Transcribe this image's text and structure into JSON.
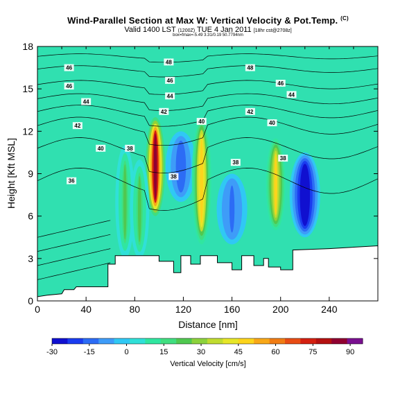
{
  "title": {
    "main": "Wind-Parallel Section at Max W: Vertical Velocity & Pot.Temp.",
    "copyright": "(C)"
  },
  "subtitle": {
    "valid": "Valid 1400 LST",
    "utc": "(1200Z)",
    "date": "TUE 4 Jan 2011",
    "forecast": "[18hr cst@2708z]",
    "small": "box=fmax=-5.49 3.31/0.19 50.7794nm"
  },
  "colorbar": {
    "label": "Vertical Velocity [cm/s]",
    "tick_labels": [
      "-30",
      "-15",
      "0",
      "15",
      "30",
      "45",
      "60",
      "75",
      "90"
    ],
    "colors": [
      "#1010d0",
      "#1a3cf0",
      "#2c6cf5",
      "#3e9cf8",
      "#30c8f4",
      "#30e0d8",
      "#30e6a0",
      "#40de80",
      "#50c850",
      "#8cd23c",
      "#c0dc30",
      "#e6e628",
      "#fcd41c",
      "#f8a818",
      "#f07c14",
      "#e84c14",
      "#d42010",
      "#b41010",
      "#900030",
      "#7a1090"
    ]
  },
  "chart_data": {
    "type": "contour",
    "title": "Wind-Parallel Section at Max W: Vertical Velocity & Pot.Temp.",
    "xlabel": "Distance [nm]",
    "ylabel": "Height [Kft MSL]",
    "xlim": [
      0,
      280
    ],
    "ylim": [
      0,
      18
    ],
    "x_ticks": [
      0,
      40,
      80,
      120,
      160,
      200,
      240
    ],
    "y_ticks": [
      0,
      3,
      6,
      9,
      12,
      15,
      18
    ],
    "fill_variable": "Vertical Velocity [cm/s]",
    "fill_range": [
      -30,
      95
    ],
    "fill_levels": [
      -30,
      -15,
      0,
      15,
      30,
      45,
      60,
      75,
      90
    ],
    "contour_variable": "Potential Temperature",
    "contour_labels": [
      {
        "x": 26,
        "y": 16.5,
        "value": "46"
      },
      {
        "x": 108,
        "y": 16.9,
        "value": "48"
      },
      {
        "x": 175,
        "y": 16.5,
        "value": "48"
      },
      {
        "x": 109,
        "y": 15.6,
        "value": "46"
      },
      {
        "x": 200,
        "y": 15.4,
        "value": "46"
      },
      {
        "x": 26,
        "y": 15.2,
        "value": "46"
      },
      {
        "x": 109,
        "y": 14.5,
        "value": "44"
      },
      {
        "x": 209,
        "y": 14.6,
        "value": "44"
      },
      {
        "x": 40,
        "y": 14.1,
        "value": "44"
      },
      {
        "x": 104,
        "y": 13.4,
        "value": "42"
      },
      {
        "x": 175,
        "y": 13.4,
        "value": "42"
      },
      {
        "x": 135,
        "y": 12.7,
        "value": "40"
      },
      {
        "x": 193,
        "y": 12.6,
        "value": "40"
      },
      {
        "x": 33,
        "y": 12.4,
        "value": "42"
      },
      {
        "x": 52,
        "y": 10.8,
        "value": "40"
      },
      {
        "x": 76,
        "y": 10.8,
        "value": "38"
      },
      {
        "x": 163,
        "y": 9.8,
        "value": "38"
      },
      {
        "x": 202,
        "y": 10.1,
        "value": "38"
      },
      {
        "x": 112,
        "y": 8.8,
        "value": "38"
      },
      {
        "x": 28,
        "y": 8.5,
        "value": "36"
      }
    ],
    "updrafts": [
      {
        "x_center": 97,
        "max_w_cm_s": 85,
        "height_range_kft": [
          6,
          13
        ]
      },
      {
        "x_center": 135,
        "max_w_cm_s": 50,
        "height_range_kft": [
          4,
          13
        ]
      },
      {
        "x_center": 196,
        "max_w_cm_s": 45,
        "height_range_kft": [
          5,
          11.5
        ]
      },
      {
        "x_center": 72,
        "max_w_cm_s": 20,
        "height_range_kft": [
          3,
          11
        ]
      },
      {
        "x_center": 84,
        "max_w_cm_s": 20,
        "height_range_kft": [
          3,
          10
        ]
      }
    ],
    "downdrafts": [
      {
        "x_center": 220,
        "min_w_cm_s": -30,
        "height_range_kft": [
          4.5,
          10.5
        ]
      },
      {
        "x_center": 118,
        "min_w_cm_s": -15,
        "height_range_kft": [
          7,
          12
        ]
      },
      {
        "x_center": 160,
        "min_w_cm_s": -12,
        "height_range_kft": [
          4,
          9
        ]
      }
    ],
    "terrain_kft": [
      [
        0,
        0.3
      ],
      [
        8,
        0.4
      ],
      [
        20,
        0.5
      ],
      [
        22,
        0.8
      ],
      [
        30,
        0.8
      ],
      [
        32,
        1.0
      ],
      [
        58,
        1.0
      ],
      [
        58,
        2.6
      ],
      [
        64,
        2.6
      ],
      [
        64,
        3.2
      ],
      [
        100,
        3.2
      ],
      [
        100,
        2.8
      ],
      [
        112,
        2.8
      ],
      [
        112,
        2.0
      ],
      [
        118,
        2.0
      ],
      [
        118,
        3.2
      ],
      [
        126,
        3.2
      ],
      [
        126,
        2.6
      ],
      [
        134,
        2.6
      ],
      [
        134,
        3.2
      ],
      [
        148,
        3.2
      ],
      [
        148,
        2.7
      ],
      [
        160,
        2.7
      ],
      [
        160,
        2.2
      ],
      [
        168,
        2.2
      ],
      [
        168,
        3.2
      ],
      [
        178,
        3.2
      ],
      [
        178,
        2.5
      ],
      [
        186,
        2.5
      ],
      [
        186,
        3.0
      ],
      [
        190,
        3.0
      ],
      [
        190,
        2.4
      ],
      [
        200,
        2.4
      ],
      [
        200,
        2.2
      ],
      [
        210,
        2.2
      ],
      [
        210,
        3.6
      ],
      [
        240,
        3.7
      ],
      [
        280,
        3.9
      ]
    ]
  }
}
